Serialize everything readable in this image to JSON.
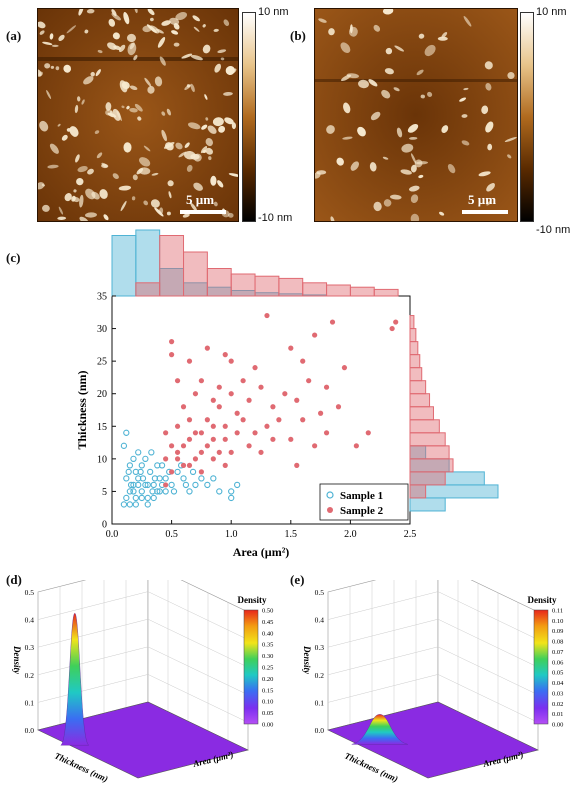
{
  "panel_a": {
    "label": "(a)",
    "scale": "5 µm",
    "cbar_top": "10 nm",
    "cbar_bottom": "-10 nm"
  },
  "panel_b": {
    "label": "(b)",
    "scale": "5 µm",
    "cbar_top": "10 nm",
    "cbar_bottom": "-10 nm"
  },
  "panel_c": {
    "label": "(c)"
  },
  "panel_d": {
    "label": "(d)",
    "zlabel": "Density",
    "xlabel": "Thickness (nm)",
    "ylabel": "Area (µm²)",
    "cbar_title": "Density",
    "cbar_ticks": [
      "0.50",
      "0.45",
      "0.40",
      "0.35",
      "0.30",
      "0.25",
      "0.20",
      "0.15",
      "0.10",
      "0.05",
      "0.00"
    ],
    "z_ticks": [
      "0.5",
      "0.4",
      "0.3",
      "0.2",
      "0.1",
      "0.0"
    ]
  },
  "panel_e": {
    "label": "(e)",
    "zlabel": "Density",
    "xlabel": "Thickness (nm)",
    "ylabel": "Area (µm²)",
    "cbar_title": "Density",
    "cbar_ticks": [
      "0.11",
      "0.10",
      "0.09",
      "0.08",
      "0.07",
      "0.06",
      "0.05",
      "0.04",
      "0.03",
      "0.02",
      "0.01",
      "0.00"
    ],
    "z_ticks": [
      "0.5",
      "0.4",
      "0.3",
      "0.2",
      "0.1",
      "0.0"
    ]
  },
  "colors": {
    "sample1": "#4fb3d4",
    "sample2": "#e06a72",
    "afm_dark": "#3a1a00",
    "afm_mid": "#8a4a10"
  },
  "chart_data": {
    "type": "scatter",
    "xlabel": "Area (µm²)",
    "ylabel": "Thickness (nm)",
    "xlim": [
      0,
      2.5
    ],
    "ylim": [
      0,
      35
    ],
    "xticks": [
      "0.0",
      "0.5",
      "1.0",
      "1.5",
      "2.0",
      "2.5"
    ],
    "yticks": [
      "0",
      "5",
      "10",
      "15",
      "20",
      "25",
      "30",
      "35"
    ],
    "legend_position": "bottom-right",
    "series": [
      {
        "name": "Sample 1",
        "marker": "open-circle",
        "points": [
          [
            0.1,
            3
          ],
          [
            0.12,
            4
          ],
          [
            0.15,
            5
          ],
          [
            0.18,
            6
          ],
          [
            0.2,
            4
          ],
          [
            0.22,
            7
          ],
          [
            0.25,
            5
          ],
          [
            0.28,
            6
          ],
          [
            0.3,
            4
          ],
          [
            0.32,
            8
          ],
          [
            0.35,
            6
          ],
          [
            0.38,
            5
          ],
          [
            0.4,
            7
          ],
          [
            0.42,
            9
          ],
          [
            0.45,
            5
          ],
          [
            0.5,
            6
          ],
          [
            0.55,
            8
          ],
          [
            0.6,
            7
          ],
          [
            0.65,
            5
          ],
          [
            0.7,
            6
          ],
          [
            0.12,
            7
          ],
          [
            0.15,
            9
          ],
          [
            0.18,
            10
          ],
          [
            0.2,
            8
          ],
          [
            0.22,
            11
          ],
          [
            0.25,
            9
          ],
          [
            0.1,
            12
          ],
          [
            0.12,
            14
          ],
          [
            0.15,
            3
          ],
          [
            0.2,
            3
          ],
          [
            0.25,
            4
          ],
          [
            0.3,
            3
          ],
          [
            0.35,
            4
          ],
          [
            0.4,
            5
          ],
          [
            0.45,
            7
          ],
          [
            0.28,
            10
          ],
          [
            0.33,
            11
          ],
          [
            0.38,
            9
          ],
          [
            0.18,
            5
          ],
          [
            0.22,
            6
          ],
          [
            0.3,
            6
          ],
          [
            0.36,
            7
          ],
          [
            0.42,
            6
          ],
          [
            0.48,
            8
          ],
          [
            0.52,
            5
          ],
          [
            0.58,
            9
          ],
          [
            0.62,
            6
          ],
          [
            0.68,
            8
          ],
          [
            0.75,
            7
          ],
          [
            0.8,
            6
          ],
          [
            0.85,
            7
          ],
          [
            0.9,
            5
          ],
          [
            1.0,
            5
          ],
          [
            1.05,
            6
          ],
          [
            1.0,
            4
          ],
          [
            0.14,
            8
          ],
          [
            0.16,
            6
          ],
          [
            0.24,
            8
          ],
          [
            0.26,
            7
          ],
          [
            0.34,
            5
          ]
        ]
      },
      {
        "name": "Sample 2",
        "marker": "filled-circle",
        "points": [
          [
            0.45,
            6
          ],
          [
            0.5,
            8
          ],
          [
            0.55,
            10
          ],
          [
            0.6,
            12
          ],
          [
            0.65,
            9
          ],
          [
            0.7,
            14
          ],
          [
            0.75,
            11
          ],
          [
            0.8,
            16
          ],
          [
            0.85,
            13
          ],
          [
            0.9,
            18
          ],
          [
            0.95,
            15
          ],
          [
            1.0,
            20
          ],
          [
            1.05,
            17
          ],
          [
            1.1,
            22
          ],
          [
            1.15,
            19
          ],
          [
            1.2,
            24
          ],
          [
            1.25,
            21
          ],
          [
            1.3,
            32
          ],
          [
            1.35,
            18
          ],
          [
            1.4,
            16
          ],
          [
            1.45,
            20
          ],
          [
            1.5,
            27
          ],
          [
            1.55,
            19
          ],
          [
            1.6,
            25
          ],
          [
            1.65,
            22
          ],
          [
            1.7,
            29
          ],
          [
            1.75,
            17
          ],
          [
            1.8,
            21
          ],
          [
            1.85,
            31
          ],
          [
            1.9,
            18
          ],
          [
            1.95,
            24
          ],
          [
            2.05,
            12
          ],
          [
            2.15,
            14
          ],
          [
            2.35,
            30
          ],
          [
            2.38,
            31
          ],
          [
            0.5,
            28
          ],
          [
            0.5,
            26
          ],
          [
            0.55,
            22
          ],
          [
            0.6,
            18
          ],
          [
            0.65,
            25
          ],
          [
            0.7,
            20
          ],
          [
            0.75,
            22
          ],
          [
            0.8,
            27
          ],
          [
            0.85,
            19
          ],
          [
            0.9,
            21
          ],
          [
            0.95,
            26
          ],
          [
            1.0,
            25
          ],
          [
            1.05,
            14
          ],
          [
            1.1,
            16
          ],
          [
            1.15,
            12
          ],
          [
            1.2,
            14
          ],
          [
            1.25,
            11
          ],
          [
            1.3,
            15
          ],
          [
            1.35,
            13
          ],
          [
            0.45,
            10
          ],
          [
            0.5,
            12
          ],
          [
            0.55,
            11
          ],
          [
            0.6,
            9
          ],
          [
            0.65,
            13
          ],
          [
            0.7,
            10
          ],
          [
            0.75,
            8
          ],
          [
            0.8,
            12
          ],
          [
            0.85,
            10
          ],
          [
            0.9,
            11
          ],
          [
            0.95,
            9
          ],
          [
            1.0,
            11
          ],
          [
            0.45,
            14
          ],
          [
            0.55,
            15
          ],
          [
            0.65,
            16
          ],
          [
            0.75,
            14
          ],
          [
            0.85,
            15
          ],
          [
            0.95,
            13
          ],
          [
            1.5,
            13
          ],
          [
            1.6,
            16
          ],
          [
            1.7,
            12
          ],
          [
            1.8,
            14
          ],
          [
            1.55,
            9
          ]
        ]
      }
    ],
    "top_hist": {
      "bins_start": 0.0,
      "bin_width": 0.2,
      "sample1": [
        55,
        60,
        25,
        12,
        8,
        5,
        3,
        2,
        1,
        0,
        0,
        0
      ],
      "sample2": [
        0,
        12,
        55,
        40,
        25,
        20,
        18,
        16,
        12,
        10,
        8,
        6
      ]
    },
    "right_hist": {
      "bins_start": 2,
      "bin_width": 2,
      "sample1": [
        18,
        45,
        38,
        20,
        8,
        0,
        0,
        0,
        0,
        0,
        0,
        0,
        0,
        0,
        0
      ],
      "sample2": [
        0,
        8,
        18,
        22,
        20,
        18,
        15,
        12,
        10,
        8,
        6,
        5,
        4,
        3,
        2
      ]
    }
  }
}
